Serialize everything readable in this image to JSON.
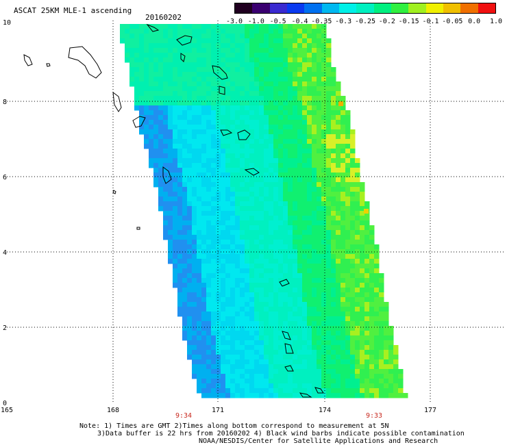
{
  "header": {
    "title": "ASCAT 25KM MLE-1 ascending",
    "date": "20160202"
  },
  "colorbar": {
    "ticks": [
      "-3.0",
      "-1.0",
      "-0.5",
      "-0.4",
      "-0.35",
      "-0.3",
      "-0.25",
      "-0.2",
      "-0.15",
      "-0.1",
      "-0.05",
      "0.0",
      "1.0"
    ],
    "colors": [
      "#200020",
      "#3a0070",
      "#3a2ad0",
      "#0a3af0",
      "#0070f0",
      "#00b8f0",
      "#00f0e8",
      "#00f0c0",
      "#00f080",
      "#30f040",
      "#a0f020",
      "#f0f000",
      "#f0c000",
      "#f07000",
      "#f01010"
    ]
  },
  "axes": {
    "y_ticks": [
      "0",
      "2",
      "4",
      "6",
      "8",
      "10"
    ],
    "x_ticks": [
      "165",
      "168",
      "171",
      "174",
      "177"
    ]
  },
  "times": {
    "left": "9:34",
    "right": "9:33"
  },
  "notes": {
    "line1": "Note: 1) Times are GMT 2)Times along bottom correspond to measurement at 5N",
    "line2": "3)Data buffer is 22 hrs from 20160202 4) Black wind barbs indicate possible contamination",
    "line3": "NOAA/NESDIS/Center for Satellite Applications and Research"
  }
}
